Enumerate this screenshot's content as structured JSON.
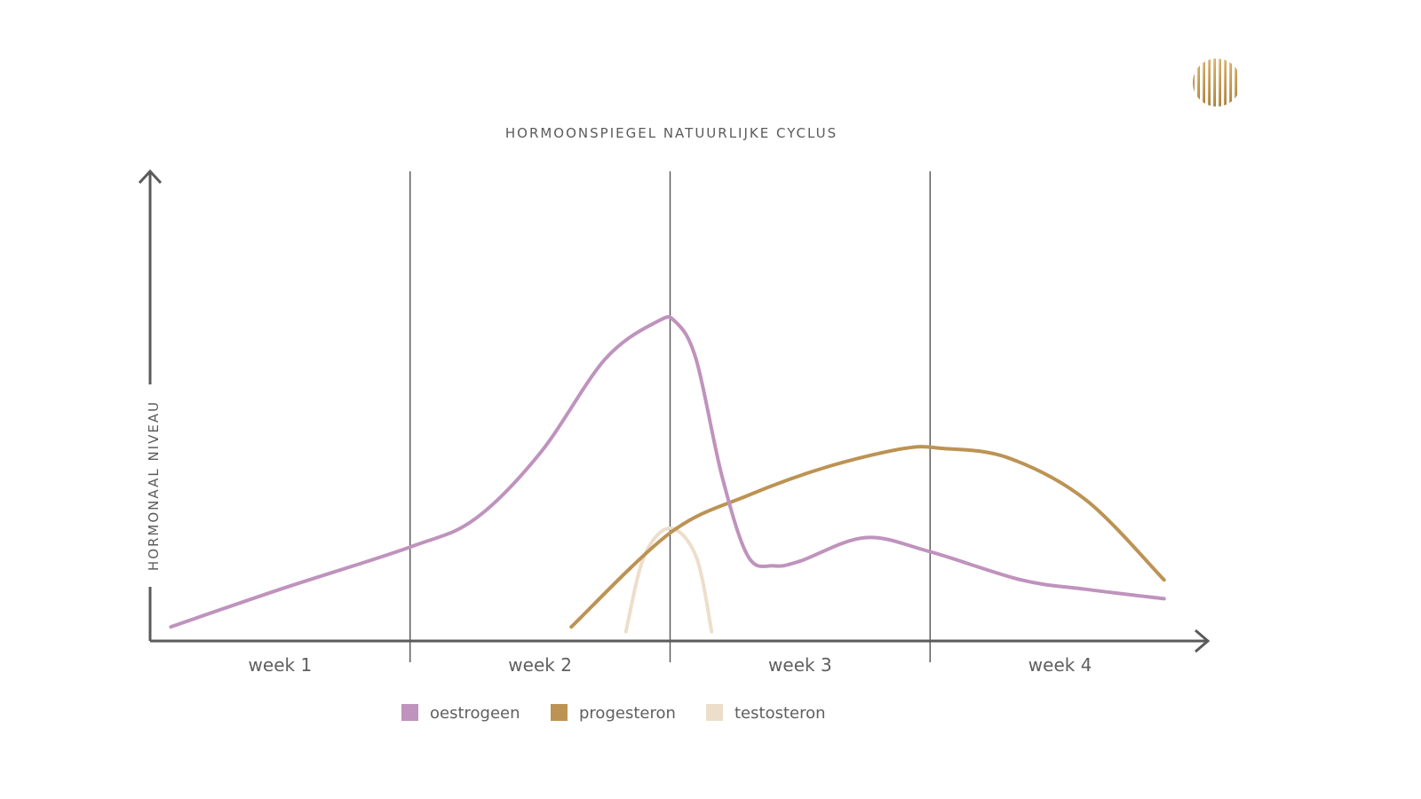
{
  "chart_data": {
    "type": "line",
    "title": "HORMOONSPIEGEL NATUURLIJKE CYCLUS",
    "ylabel": "HORMONAAL NIVEAU",
    "xlabel": "",
    "categories": [
      "week 1",
      "week 2",
      "week 3",
      "week 4"
    ],
    "xlim": [
      0,
      4
    ],
    "ylim": [
      0,
      100
    ],
    "grid": "vertical lines between weeks",
    "legend_position": "bottom-center",
    "series": [
      {
        "name": "oestrogeen",
        "color": "#bf93bd",
        "x": [
          0.08,
          0.5,
          1.0,
          1.25,
          1.5,
          1.75,
          1.95,
          2.02,
          2.1,
          2.2,
          2.3,
          2.4,
          2.5,
          2.75,
          3.0,
          3.35,
          3.6,
          3.9
        ],
        "y": [
          3,
          11,
          20,
          26,
          40,
          60,
          68,
          68,
          60,
          35,
          18,
          16,
          17,
          22,
          19,
          13,
          11,
          9
        ]
      },
      {
        "name": "progesteron",
        "color": "#bc9354",
        "x": [
          1.62,
          2.0,
          2.3,
          2.6,
          2.9,
          3.05,
          3.3,
          3.6,
          3.9
        ],
        "y": [
          3,
          23,
          31,
          37,
          41,
          41,
          39,
          30,
          13
        ]
      },
      {
        "name": "testosteron",
        "color": "#eddecb",
        "x": [
          1.83,
          1.9,
          2.0,
          2.1,
          2.16
        ],
        "y": [
          2,
          18,
          24,
          18,
          2
        ]
      }
    ]
  },
  "logo": {
    "icon": "gold-striped-circle-logo",
    "color": "#c9a15e"
  }
}
